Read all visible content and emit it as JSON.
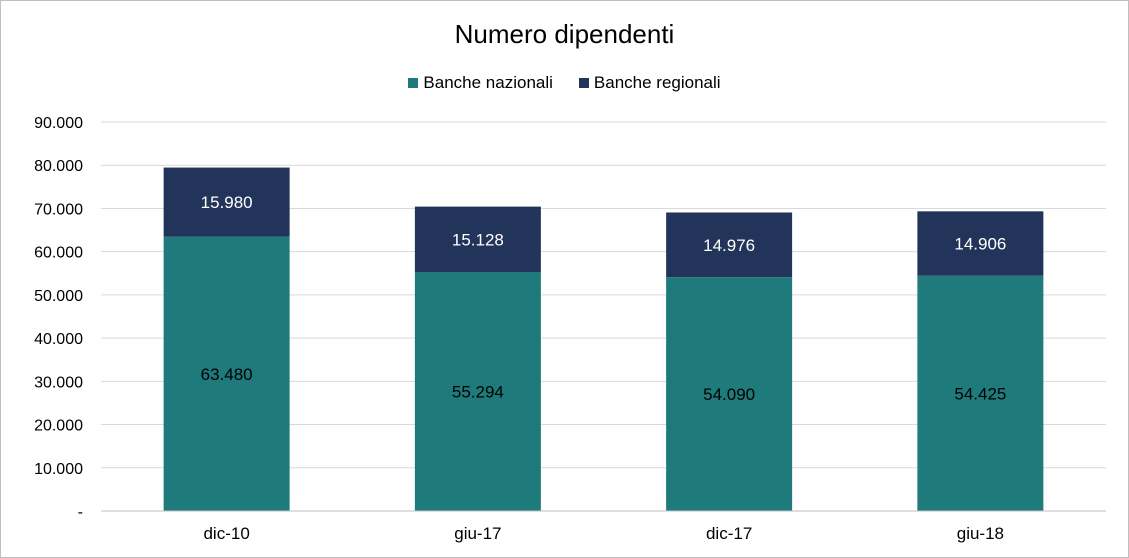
{
  "chart_data": {
    "type": "bar",
    "stacked": true,
    "title": "Numero dipendenti",
    "categories": [
      "dic-10",
      "giu-17",
      "dic-17",
      "giu-18"
    ],
    "series": [
      {
        "name": "Banche nazionali",
        "values": [
          63480,
          55294,
          54090,
          54425
        ],
        "labels": [
          "63.480",
          "55.294",
          "54.090",
          "54.425"
        ],
        "color": "#1f7b7b",
        "label_color": "#000000"
      },
      {
        "name": "Banche regionali",
        "values": [
          15980,
          15128,
          14976,
          14906
        ],
        "labels": [
          "15.980",
          "15.128",
          "14.976",
          "14.906"
        ],
        "color": "#223459",
        "label_color": "#ffffff"
      }
    ],
    "ylim": [
      0,
      90000
    ],
    "yticks": [
      0,
      10000,
      20000,
      30000,
      40000,
      50000,
      60000,
      70000,
      80000,
      90000
    ],
    "ytick_labels": [
      "-",
      "10.000",
      "20.000",
      "30.000",
      "40.000",
      "50.000",
      "60.000",
      "70.000",
      "80.000",
      "90.000"
    ],
    "grid": true,
    "legend_position": "top"
  }
}
